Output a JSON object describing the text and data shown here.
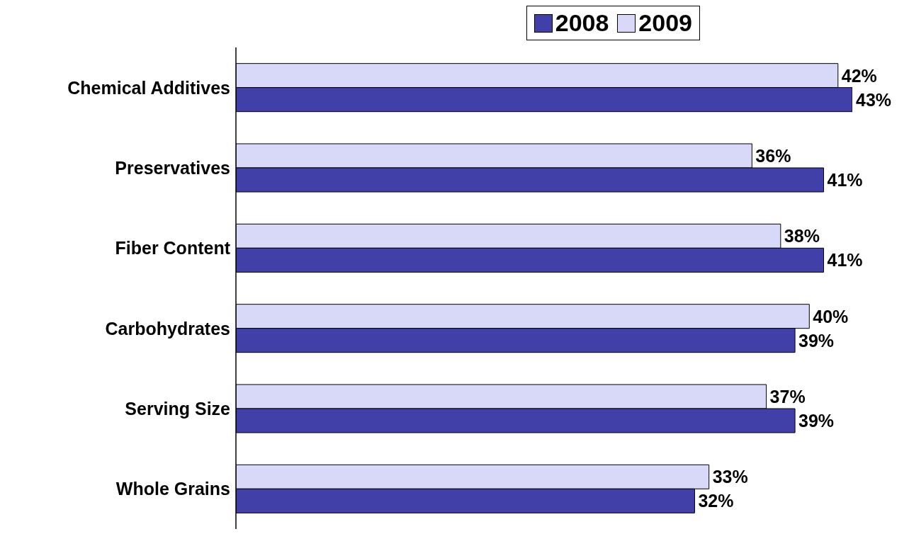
{
  "chart_data": {
    "type": "bar",
    "orientation": "horizontal",
    "categories": [
      "Chemical Additives",
      "Preservatives",
      "Fiber Content",
      "Carbohydrates",
      "Serving Size",
      "Whole Grains"
    ],
    "series": [
      {
        "name": "2008",
        "color": "#4040a8",
        "values": [
          43,
          41,
          41,
          39,
          39,
          32
        ],
        "value_labels": [
          "43%",
          "41%",
          "41%",
          "39%",
          "39%",
          "32%"
        ]
      },
      {
        "name": "2009",
        "color": "#d8d8f8",
        "values": [
          42,
          36,
          38,
          40,
          37,
          33
        ],
        "value_labels": [
          "42%",
          "36%",
          "38%",
          "40%",
          "37%",
          "33%"
        ]
      }
    ],
    "legend": "top right",
    "grid": false
  }
}
